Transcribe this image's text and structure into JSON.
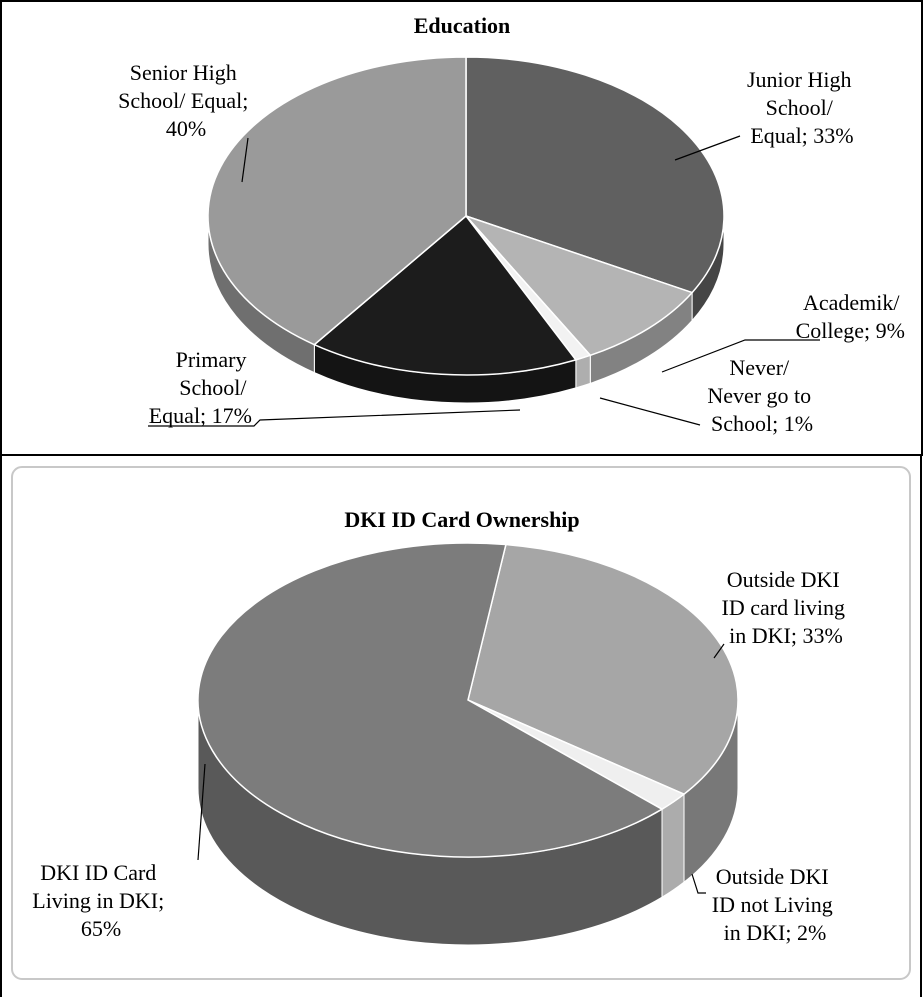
{
  "chart_data": [
    {
      "type": "pie",
      "title": "Education",
      "categories": [
        "Junior High School/ Equal",
        "Academik/ College",
        "Never/ Never go to School",
        "Primary School/ Equal",
        "Senior High School/ Equal"
      ],
      "values": [
        33,
        9,
        1,
        17,
        40
      ],
      "unit": "%",
      "colors": [
        "#606060",
        "#b4b4b4",
        "#f2f2f2",
        "#1c1c1c",
        "#9a9a9a"
      ],
      "labels": [
        {
          "lines": [
            "Junior High",
            "School/",
            "Equal; 33%"
          ]
        },
        {
          "lines": [
            "Academik/",
            "College; 9%"
          ]
        },
        {
          "lines": [
            "Never/",
            "Never go to",
            "School; 1%"
          ]
        },
        {
          "lines": [
            "Primary",
            "School/",
            "Equal; 17%"
          ]
        },
        {
          "lines": [
            "Senior High",
            "School/ Equal;",
            "40%"
          ]
        }
      ],
      "style": "3d-pie"
    },
    {
      "type": "pie",
      "title": "DKI ID Card Ownership",
      "categories": [
        "Outside DKI ID card living in DKI",
        "Outside DKI ID not Living in DKI",
        "DKI ID Card Living in DKI"
      ],
      "values": [
        33,
        2,
        65
      ],
      "unit": "%",
      "colors": [
        "#a6a6a6",
        "#efefef",
        "#7c7c7c"
      ],
      "labels": [
        {
          "lines": [
            "Outside DKI",
            "ID card living",
            "in DKI; 33%"
          ]
        },
        {
          "lines": [
            "Outside DKI",
            "ID not Living",
            "in DKI; 2%"
          ]
        },
        {
          "lines": [
            "DKI ID Card",
            "Living in DKI;",
            "65%"
          ]
        }
      ],
      "style": "3d-pie"
    }
  ]
}
